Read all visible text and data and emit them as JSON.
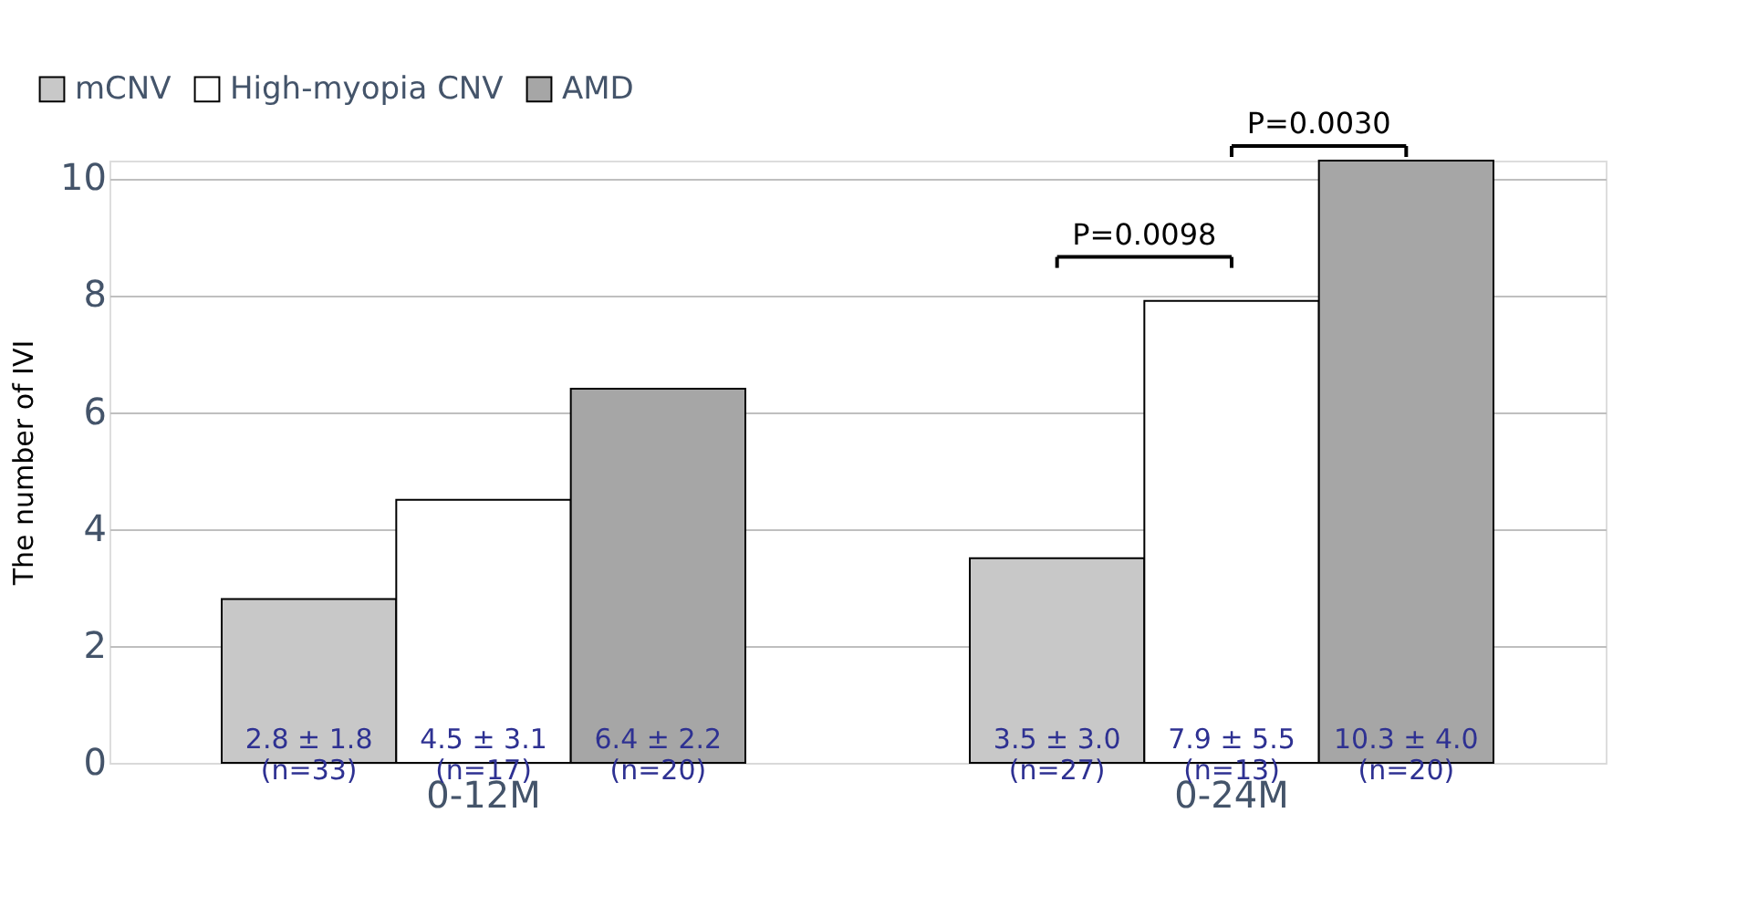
{
  "chart_data": {
    "type": "bar",
    "ylabel": "The number of IVI",
    "categories": [
      "0-12M",
      "0-24M"
    ],
    "series": [
      {
        "name": "mCNV",
        "color": "#c8c8c8",
        "values": [
          2.8,
          3.5
        ],
        "value_labels": [
          "2.8 ± 1.8\n(n=33)",
          "3.5 ± 3.0\n(n=27)"
        ]
      },
      {
        "name": "High-myopia CNV",
        "color": "#ffffff",
        "values": [
          4.5,
          7.9
        ],
        "value_labels": [
          "4.5 ± 3.1\n(n=17)",
          "7.9 ± 5.5\n(n=13)"
        ]
      },
      {
        "name": "AMD",
        "color": "#a6a6a6",
        "values": [
          6.4,
          10.3
        ],
        "value_labels": [
          "6.4 ± 2.2\n(n=20)",
          "10.3 ± 4.0\n(n=20)"
        ]
      }
    ],
    "ylim": [
      0,
      10.3
    ],
    "yticks": [
      0,
      2,
      4,
      6,
      8,
      10
    ],
    "grid": "y",
    "legend": "top left",
    "annotations": [
      "P=0.0098",
      "P=0.0030"
    ]
  }
}
